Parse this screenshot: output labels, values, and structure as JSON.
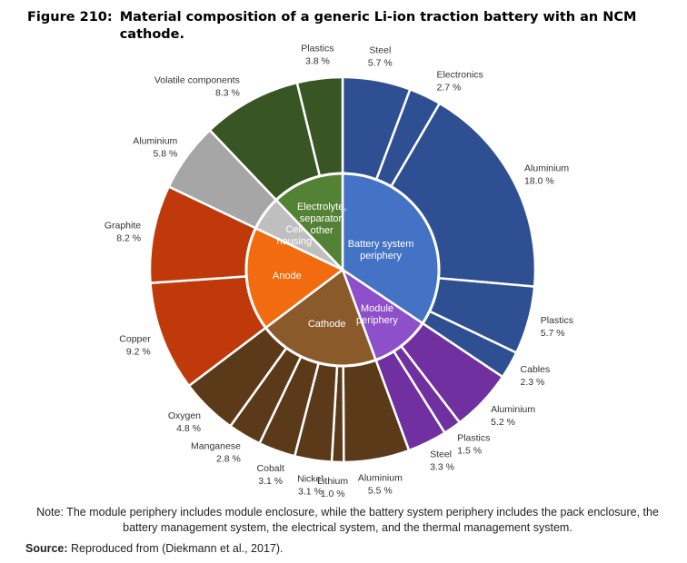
{
  "figure": {
    "number": "Figure 210:",
    "title": "Material composition of a generic Li-ion traction battery with an NCM cathode."
  },
  "note": "Note: The module periphery includes module enclosure, while the battery system periphery includes the pack enclosure, the battery management system, the electrical system, and the thermal management system.",
  "source": {
    "label": "Source:",
    "text": "Reproduced from (Diekmann et al., 2017)."
  },
  "colors": {
    "battery_system": "#2E4F92",
    "battery_system_inner": "#4472C4",
    "module": "#7030A0",
    "module_inner": "#8E4FCB",
    "cathode": "#5B3A1A",
    "cathode_inner": "#8B5A2B",
    "anode": "#C0390B",
    "anode_inner": "#F26B0F",
    "cell_housing": "#A6A6A6",
    "cell_housing_inner": "#BFBFBF",
    "electrolyte": "#375623",
    "electrolyte_inner": "#548235"
  },
  "chart_data": {
    "type": "pie",
    "subtype": "sunburst",
    "unit": "%",
    "groups": [
      {
        "name": [
          "Battery system",
          "periphery"
        ],
        "color_key": "battery_system",
        "items": [
          {
            "label": "Steel",
            "value": 5.7,
            "value_text": "5.7 %"
          },
          {
            "label": "Electronics",
            "value": 2.7,
            "value_text": "2.7 %"
          },
          {
            "label": "Aluminium",
            "value": 18.0,
            "value_text": "18.0 %"
          },
          {
            "label": "Plastics",
            "value": 5.7,
            "value_text": "5.7 %"
          },
          {
            "label": "Cables",
            "value": 2.3,
            "value_text": "2.3 %"
          }
        ]
      },
      {
        "name": [
          "Module",
          "periphery"
        ],
        "color_key": "module",
        "items": [
          {
            "label": "Aluminium",
            "value": 5.2,
            "value_text": "5.2 %"
          },
          {
            "label": "Plastics",
            "value": 1.5,
            "value_text": "1.5 %"
          },
          {
            "label": "Steel",
            "value": 3.3,
            "value_text": "3.3 %"
          }
        ]
      },
      {
        "name": [
          "Cathode"
        ],
        "color_key": "cathode",
        "items": [
          {
            "label": "Aluminium",
            "value": 5.5,
            "value_text": "5.5 %"
          },
          {
            "label": "Lithium",
            "value": 1.0,
            "value_text": "1.0 %"
          },
          {
            "label": "Nickel",
            "value": 3.1,
            "value_text": "3.1 %"
          },
          {
            "label": "Cobalt",
            "value": 3.1,
            "value_text": "3.1 %"
          },
          {
            "label": "Manganese",
            "value": 2.8,
            "value_text": "2.8 %"
          },
          {
            "label": "Oxygen",
            "value": 4.8,
            "value_text": "4.8 %"
          }
        ]
      },
      {
        "name": [
          "Anode"
        ],
        "color_key": "anode",
        "items": [
          {
            "label": "Copper",
            "value": 9.2,
            "value_text": "9.2 %"
          },
          {
            "label": "Graphite",
            "value": 8.2,
            "value_text": "8.2 %"
          }
        ]
      },
      {
        "name": [
          "Cell",
          "housing"
        ],
        "color_key": "cell_housing",
        "items": [
          {
            "label": "Aluminium",
            "value": 5.8,
            "value_text": "5.8 %"
          }
        ]
      },
      {
        "name": [
          "Electrolyte,",
          "separator,",
          "other"
        ],
        "color_key": "electrolyte",
        "items": [
          {
            "label": "Volatile components",
            "value": 8.3,
            "value_text": "8.3 %"
          },
          {
            "label": "Plastics",
            "value": 3.8,
            "value_text": "3.8 %"
          }
        ]
      }
    ]
  }
}
